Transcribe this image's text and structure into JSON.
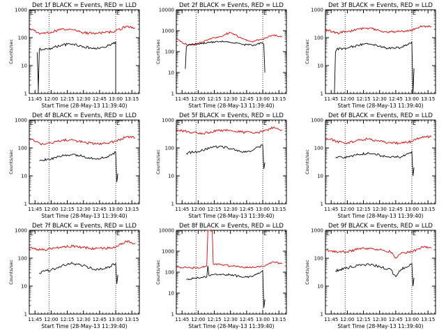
{
  "colors": {
    "events": "#000000",
    "lld": "#e00000",
    "axes": "#000000",
    "background": "#ffffff"
  },
  "chart_data": [
    {
      "type": "line",
      "title": "Det 1f BLACK = Events, RED = LLD",
      "xlabel": "Start Time (28-May-13 11:39:40)",
      "ylabel": "Counts/sec",
      "xticks": [
        "11:45",
        "12:00",
        "12:15",
        "12:30",
        "12:45",
        "13:00",
        "13:15"
      ],
      "yticks": [
        "1",
        "10",
        "100",
        "1000"
      ],
      "yscale": "log",
      "ylim": [
        1,
        1000
      ],
      "xlim": [
        "11:39:40",
        "13:22"
      ],
      "flag_label": "E",
      "markers": [
        "11:58",
        "13:00"
      ],
      "series": [
        {
          "name": "LLD",
          "color": "#e00000",
          "x": [
            "11:40",
            "11:50",
            "12:00",
            "12:10",
            "12:20",
            "12:30",
            "12:40",
            "12:50",
            "13:00",
            "13:10",
            "13:18"
          ],
          "y": [
            220,
            140,
            160,
            200,
            190,
            150,
            140,
            150,
            170,
            250,
            230
          ]
        },
        {
          "name": "Events",
          "color": "#000000",
          "x": [
            "11:47",
            "11:48",
            "11:48",
            "11:49",
            "12:00",
            "12:10",
            "12:20",
            "12:30",
            "12:40",
            "12:50",
            "13:00",
            "13:00",
            "13:01"
          ],
          "y": [
            30,
            2,
            1,
            38,
            42,
            55,
            60,
            48,
            40,
            45,
            70,
            1,
            1
          ]
        }
      ]
    },
    {
      "type": "line",
      "title": "Det 2f BLACK = Events, RED = LLD",
      "xlabel": "Start Time (28-May-13 11:39:40)",
      "ylabel": "Counts/sec",
      "xticks": [
        "11:45",
        "12:00",
        "12:15",
        "12:30",
        "12:45",
        "13:00",
        "13:15"
      ],
      "yticks": [
        "1",
        "10",
        "100",
        "1000",
        "10000"
      ],
      "yscale": "log",
      "ylim": [
        1,
        10000
      ],
      "xlim": [
        "11:39:40",
        "13:22"
      ],
      "flag_label": "E",
      "markers": [
        "11:58",
        "13:00"
      ],
      "series": [
        {
          "name": "LLD",
          "color": "#e00000",
          "x": [
            "11:40",
            "11:50",
            "12:00",
            "12:10",
            "12:20",
            "12:25",
            "12:30",
            "12:40",
            "12:50",
            "13:00",
            "13:10",
            "13:18"
          ],
          "y": [
            420,
            200,
            240,
            380,
            520,
            680,
            800,
            450,
            300,
            400,
            600,
            550
          ]
        },
        {
          "name": "Events",
          "color": "#000000",
          "x": [
            "11:48",
            "11:49",
            "11:50",
            "12:00",
            "12:10",
            "12:20",
            "12:30",
            "12:40",
            "12:50",
            "13:00",
            "13:01",
            "13:02"
          ],
          "y": [
            15,
            170,
            200,
            240,
            270,
            300,
            280,
            230,
            200,
            260,
            220,
            10
          ]
        }
      ]
    },
    {
      "type": "line",
      "title": "Det 3f BLACK = Events, RED = LLD",
      "xlabel": "Start Time (28-May-13 11:39:40)",
      "ylabel": "Counts/sec",
      "xticks": [
        "11:45",
        "12:00",
        "12:15",
        "12:30",
        "12:45",
        "13:00",
        "13:15"
      ],
      "yticks": [
        "1",
        "10",
        "100",
        "1000"
      ],
      "yscale": "log",
      "ylim": [
        1,
        1000
      ],
      "xlim": [
        "11:39:40",
        "13:22"
      ],
      "flag_label": "E",
      "markers": [
        "11:58",
        "13:00"
      ],
      "series": [
        {
          "name": "LLD",
          "color": "#e00000",
          "x": [
            "11:40",
            "11:50",
            "12:00",
            "12:10",
            "12:20",
            "12:30",
            "12:40",
            "12:50",
            "13:00",
            "13:10",
            "13:18"
          ],
          "y": [
            190,
            150,
            160,
            210,
            220,
            180,
            160,
            170,
            190,
            260,
            250
          ]
        },
        {
          "name": "Events",
          "color": "#000000",
          "x": [
            "11:48",
            "11:49",
            "11:50",
            "12:00",
            "12:10",
            "12:20",
            "12:30",
            "12:40",
            "12:50",
            "13:00",
            "13:01",
            "13:02"
          ],
          "y": [
            1,
            30,
            38,
            42,
            55,
            60,
            50,
            40,
            45,
            70,
            1,
            8
          ]
        }
      ]
    },
    {
      "type": "line",
      "title": "Det 4f BLACK = Events, RED = LLD",
      "xlabel": "Start Time (28-May-13 11:39:40)",
      "ylabel": "Counts/sec",
      "xticks": [
        "11:45",
        "12:00",
        "12:15",
        "12:30",
        "12:45",
        "13:00",
        "13:15"
      ],
      "yticks": [
        "1",
        "10",
        "100",
        "1000"
      ],
      "yscale": "log",
      "ylim": [
        1,
        1000
      ],
      "xlim": [
        "11:39:40",
        "13:22"
      ],
      "flag_label": "E",
      "markers": [
        "11:58",
        "13:00"
      ],
      "series": [
        {
          "name": "LLD",
          "color": "#e00000",
          "x": [
            "11:40",
            "11:50",
            "12:00",
            "12:10",
            "12:20",
            "12:30",
            "12:40",
            "12:50",
            "13:00",
            "13:10",
            "13:18"
          ],
          "y": [
            220,
            140,
            150,
            190,
            190,
            160,
            140,
            150,
            170,
            250,
            230
          ]
        },
        {
          "name": "Events",
          "color": "#000000",
          "x": [
            "11:49",
            "12:00",
            "12:10",
            "12:20",
            "12:30",
            "12:40",
            "12:50",
            "13:00",
            "13:01",
            "13:02"
          ],
          "y": [
            35,
            40,
            52,
            60,
            50,
            42,
            45,
            70,
            6,
            12
          ]
        }
      ]
    },
    {
      "type": "line",
      "title": "Det 5f BLACK = Events, RED = LLD",
      "xlabel": "Start Time (28-May-13 11:39:40)",
      "ylabel": "Counts/sec",
      "xticks": [
        "11:45",
        "12:00",
        "12:15",
        "12:30",
        "12:45",
        "13:00",
        "13:15"
      ],
      "yticks": [
        "1",
        "10",
        "100",
        "1000"
      ],
      "yscale": "log",
      "ylim": [
        1,
        1000
      ],
      "xlim": [
        "11:39:40",
        "13:22"
      ],
      "flag_label": "E",
      "markers": [
        "11:58",
        "13:00"
      ],
      "series": [
        {
          "name": "LLD",
          "color": "#e00000",
          "x": [
            "11:40",
            "11:50",
            "12:00",
            "12:10",
            "12:20",
            "12:30",
            "12:40",
            "12:50",
            "13:00",
            "13:10",
            "13:18"
          ],
          "y": [
            460,
            380,
            330,
            350,
            430,
            430,
            370,
            350,
            380,
            550,
            450
          ]
        },
        {
          "name": "Events",
          "color": "#000000",
          "x": [
            "11:49",
            "12:00",
            "12:10",
            "12:20",
            "12:30",
            "12:40",
            "12:50",
            "13:00",
            "13:01",
            "13:02"
          ],
          "y": [
            65,
            75,
            95,
            115,
            95,
            75,
            80,
            130,
            18,
            30
          ]
        }
      ]
    },
    {
      "type": "line",
      "title": "Det 6f BLACK = Events, RED = LLD",
      "xlabel": "Start Time (28-May-13 11:39:40)",
      "ylabel": "Counts/sec",
      "xticks": [
        "11:45",
        "12:00",
        "12:15",
        "12:30",
        "12:45",
        "13:00",
        "13:15"
      ],
      "yticks": [
        "1",
        "10",
        "100",
        "1000"
      ],
      "yscale": "log",
      "ylim": [
        1,
        1000
      ],
      "xlim": [
        "11:39:40",
        "13:22"
      ],
      "flag_label": "E",
      "markers": [
        "11:58",
        "13:00"
      ],
      "series": [
        {
          "name": "LLD",
          "color": "#e00000",
          "x": [
            "11:40",
            "11:50",
            "12:00",
            "12:10",
            "12:20",
            "12:30",
            "12:40",
            "12:50",
            "13:00",
            "13:10",
            "13:18"
          ],
          "y": [
            230,
            170,
            150,
            190,
            210,
            170,
            150,
            150,
            170,
            260,
            250
          ]
        },
        {
          "name": "Events",
          "color": "#000000",
          "x": [
            "11:49",
            "12:00",
            "12:10",
            "12:20",
            "12:30",
            "12:40",
            "12:50",
            "13:00",
            "13:01",
            "13:02"
          ],
          "y": [
            45,
            48,
            58,
            65,
            55,
            45,
            48,
            75,
            10,
            20
          ]
        }
      ]
    },
    {
      "type": "line",
      "title": "Det 7f BLACK = Events, RED = LLD",
      "xlabel": "Start Time (28-May-13 11:39:40)",
      "ylabel": "Counts/sec",
      "xticks": [
        "11:45",
        "12:00",
        "12:15",
        "12:30",
        "12:45",
        "13:00",
        "13:15"
      ],
      "yticks": [
        "1",
        "10",
        "100",
        "1000"
      ],
      "yscale": "log",
      "ylim": [
        1,
        1000
      ],
      "xlim": [
        "11:39:40",
        "13:22"
      ],
      "flag_label": "E",
      "markers": [
        "11:58",
        "13:00"
      ],
      "series": [
        {
          "name": "LLD",
          "color": "#e00000",
          "x": [
            "11:40",
            "11:50",
            "12:00",
            "12:10",
            "12:20",
            "12:30",
            "12:40",
            "12:50",
            "13:00",
            "13:10",
            "13:18"
          ],
          "y": [
            230,
            200,
            210,
            250,
            270,
            240,
            220,
            230,
            250,
            400,
            350
          ]
        },
        {
          "name": "Events",
          "color": "#000000",
          "x": [
            "11:49",
            "12:00",
            "12:10",
            "12:20",
            "12:30",
            "12:40",
            "12:50",
            "13:00",
            "13:01",
            "13:02"
          ],
          "y": [
            30,
            38,
            55,
            65,
            55,
            40,
            42,
            65,
            12,
            25
          ]
        }
      ]
    },
    {
      "type": "line",
      "title": "Det 8f BLACK = Events, RED = LLD",
      "xlabel": "Start Time (28-May-13 11:39:40)",
      "ylabel": "Counts/sec",
      "xticks": [
        "11:45",
        "12:00",
        "12:15",
        "12:30",
        "12:45",
        "13:00",
        "13:15"
      ],
      "yticks": [
        "1",
        "10",
        "100",
        "1000",
        "10000"
      ],
      "yscale": "log",
      "ylim": [
        1,
        10000
      ],
      "xlim": [
        "11:39:40",
        "13:22"
      ],
      "flag_label": "E",
      "markers": [
        "11:58",
        "13:00"
      ],
      "series": [
        {
          "name": "LLD",
          "color": "#e00000",
          "x": [
            "11:40",
            "11:50",
            "12:00",
            "12:08",
            "12:09",
            "12:10",
            "12:13",
            "12:14",
            "12:20",
            "12:30",
            "12:40",
            "12:50",
            "13:00",
            "13:10",
            "13:18"
          ],
          "y": [
            180,
            160,
            160,
            200,
            10000,
            10000,
            10000,
            250,
            230,
            200,
            180,
            170,
            190,
            300,
            250
          ]
        },
        {
          "name": "Events",
          "color": "#000000",
          "x": [
            "11:49",
            "12:00",
            "12:08",
            "12:09",
            "12:10",
            "12:20",
            "12:30",
            "12:40",
            "12:50",
            "13:00",
            "13:01",
            "13:02"
          ],
          "y": [
            45,
            55,
            60,
            200,
            70,
            80,
            75,
            60,
            60,
            120,
            2,
            5
          ]
        }
      ]
    },
    {
      "type": "line",
      "title": "Det 9f BLACK = Events, RED = LLD",
      "xlabel": "Start Time (28-May-13 11:39:40)",
      "ylabel": "Counts/sec",
      "xticks": [
        "11:45",
        "12:00",
        "12:15",
        "12:30",
        "12:45",
        "13:00",
        "13:15"
      ],
      "yticks": [
        "1",
        "10",
        "100",
        "1000"
      ],
      "yscale": "log",
      "ylim": [
        1,
        1000
      ],
      "xlim": [
        "11:39:40",
        "13:22"
      ],
      "flag_label": "E",
      "markers": [
        "11:58",
        "13:00"
      ],
      "series": [
        {
          "name": "LLD",
          "color": "#e00000",
          "x": [
            "11:40",
            "11:50",
            "12:00",
            "12:10",
            "12:20",
            "12:30",
            "12:40",
            "12:45",
            "12:50",
            "13:00",
            "13:10",
            "13:18"
          ],
          "y": [
            200,
            170,
            170,
            210,
            230,
            200,
            170,
            100,
            150,
            170,
            250,
            230
          ]
        },
        {
          "name": "Events",
          "color": "#000000",
          "x": [
            "11:49",
            "12:00",
            "12:10",
            "12:20",
            "12:30",
            "12:40",
            "12:45",
            "12:50",
            "13:00",
            "13:01",
            "13:02"
          ],
          "y": [
            35,
            45,
            55,
            60,
            50,
            40,
            22,
            40,
            65,
            10,
            20
          ]
        }
      ]
    }
  ]
}
